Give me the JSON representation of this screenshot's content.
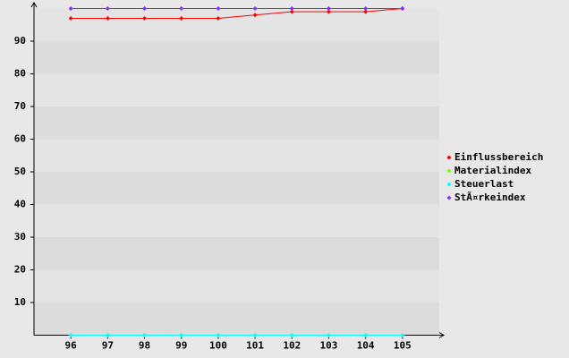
{
  "chart_data": {
    "type": "line",
    "x": [
      96,
      97,
      98,
      99,
      100,
      101,
      102,
      103,
      104,
      105
    ],
    "xlim": [
      95,
      106
    ],
    "xticks": [
      96,
      97,
      98,
      99,
      100,
      101,
      102,
      103,
      104,
      105
    ],
    "ylim": [
      0,
      100
    ],
    "yticks": [
      10,
      20,
      30,
      40,
      50,
      60,
      70,
      80,
      90
    ],
    "grid": true,
    "legend": "right",
    "series": [
      {
        "name": "Einflussbereich",
        "color": "#ff0000",
        "values": [
          97,
          97,
          97,
          97,
          97,
          98,
          99,
          99,
          99,
          100
        ]
      },
      {
        "name": "Materialindex",
        "color": "#80ff00",
        "values": [
          0,
          0,
          0,
          0,
          0,
          0,
          0,
          0,
          0,
          0
        ]
      },
      {
        "name": "Steuerlast",
        "color": "#00ffff",
        "values": [
          0,
          0,
          0,
          0,
          0,
          0,
          0,
          0,
          0,
          0
        ]
      },
      {
        "name": "StÃ¤rkeindex",
        "color": "#8030ff",
        "values": [
          100,
          100,
          100,
          100,
          100,
          100,
          100,
          100,
          100,
          100
        ]
      }
    ]
  }
}
